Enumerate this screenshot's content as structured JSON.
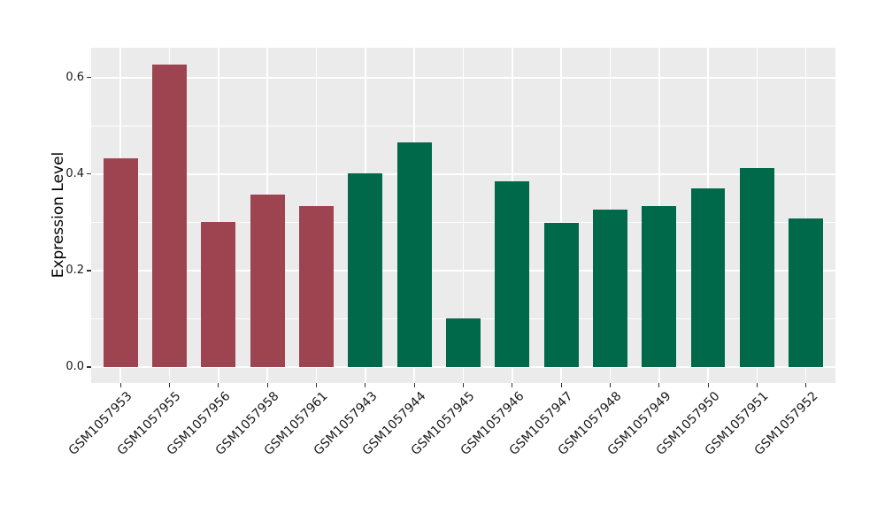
{
  "chart_data": {
    "type": "bar",
    "title": "",
    "xlabel": "",
    "ylabel": "Expression Level",
    "categories": [
      "GSM1057953",
      "GSM1057955",
      "GSM1057956",
      "GSM1057958",
      "GSM1057961",
      "GSM1057943",
      "GSM1057944",
      "GSM1057945",
      "GSM1057946",
      "GSM1057947",
      "GSM1057948",
      "GSM1057949",
      "GSM1057950",
      "GSM1057951",
      "GSM1057952"
    ],
    "values": [
      0.432,
      0.627,
      0.3,
      0.357,
      0.333,
      0.401,
      0.465,
      0.1,
      0.386,
      0.299,
      0.327,
      0.333,
      0.37,
      0.413,
      0.308
    ],
    "bar_colors": [
      "#9E4451",
      "#9E4451",
      "#9E4451",
      "#9E4451",
      "#9E4451",
      "#00694A",
      "#00694A",
      "#00694A",
      "#00694A",
      "#00694A",
      "#00694A",
      "#00694A",
      "#00694A",
      "#00694A",
      "#00694A"
    ],
    "groups": [
      {
        "name": "maroon-group",
        "color": "#9E4451",
        "count": 5
      },
      {
        "name": "green-group",
        "color": "#00694A",
        "count": 10
      }
    ],
    "yticks": {
      "values": [
        0.0,
        0.2,
        0.4,
        0.6
      ],
      "labels": [
        "0.0",
        "0.2",
        "0.4",
        "0.6"
      ]
    },
    "yticks_minor": [
      0.1,
      0.3,
      0.5
    ],
    "ylim": [
      -0.033,
      0.662
    ],
    "bar_width_fraction": 0.7,
    "grid": "on",
    "legend": "none",
    "panel_bg": "#EBEBEB",
    "grid_color": "#FFFFFF",
    "tick_color": "#333333",
    "text_color": "#1A1A1A"
  }
}
